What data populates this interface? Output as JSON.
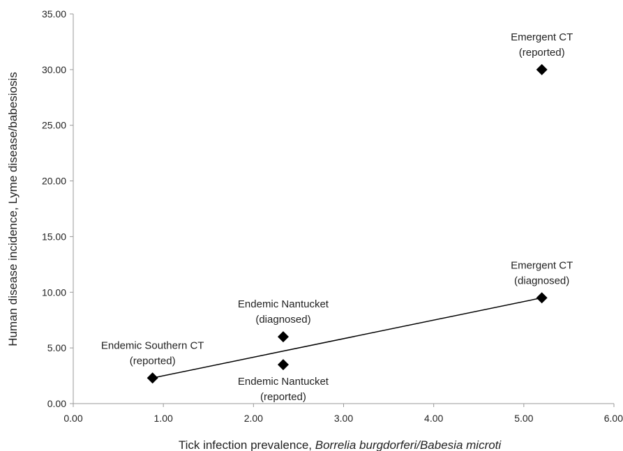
{
  "chart_data": {
    "type": "scatter",
    "title": "",
    "xlabel": {
      "prefix": "Tick infection prevalence, ",
      "italic": "Borrelia burgdorferi/Babesia microti"
    },
    "ylabel": "Human disease incidence, Lyme disease/babesiosis",
    "xlim": [
      0,
      6
    ],
    "ylim": [
      0,
      35
    ],
    "x_ticks": [
      0,
      1,
      2,
      3,
      4,
      5,
      6
    ],
    "y_ticks": [
      0,
      5,
      10,
      15,
      20,
      25,
      30,
      35
    ],
    "x_tick_labels": [
      "0.00",
      "1.00",
      "2.00",
      "3.00",
      "4.00",
      "5.00",
      "6.00"
    ],
    "y_tick_labels": [
      "0.00",
      "5.00",
      "10.00",
      "15.00",
      "20.00",
      "25.00",
      "30.00",
      "35.00"
    ],
    "grid": false,
    "legend": "none",
    "marker": "diamond",
    "marker_color": "#000000",
    "points": [
      {
        "x": 0.88,
        "y": 2.3,
        "label": [
          "Endemic Southern CT",
          "(reported)"
        ],
        "label_pos": "above"
      },
      {
        "x": 2.33,
        "y": 6.0,
        "label": [
          "Endemic Nantucket",
          "(diagnosed)"
        ],
        "label_pos": "above"
      },
      {
        "x": 2.33,
        "y": 3.5,
        "label": [
          "Endemic Nantucket",
          "(reported)"
        ],
        "label_pos": "below"
      },
      {
        "x": 5.2,
        "y": 9.5,
        "label": [
          "Emergent CT",
          "(diagnosed)"
        ],
        "label_pos": "above"
      },
      {
        "x": 5.2,
        "y": 30.0,
        "label": [
          "Emergent CT",
          "(reported)"
        ],
        "label_pos": "above"
      }
    ],
    "trendline": {
      "x": [
        0.88,
        5.2
      ],
      "y": [
        2.3,
        9.5
      ]
    }
  }
}
